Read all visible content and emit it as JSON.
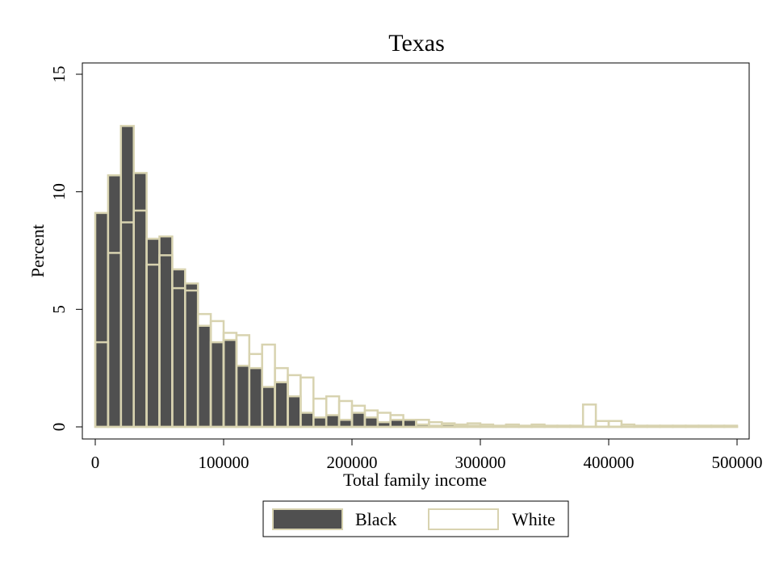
{
  "chart_data": {
    "type": "bar",
    "title": "Texas",
    "xlabel": "Total family income",
    "ylabel": "Percent",
    "xlim": [
      0,
      500000
    ],
    "ylim": [
      0,
      15
    ],
    "xticks": [
      "0",
      "100000",
      "200000",
      "300000",
      "400000",
      "500000"
    ],
    "yticks": [
      "0",
      "5",
      "10",
      "15"
    ],
    "bin_width": 10000,
    "grid": false,
    "legend_position": "bottom",
    "series": [
      {
        "name": "Black",
        "fill": "#505050",
        "stroke": "#d8d3b0",
        "bins": [
          [
            0,
            9.1
          ],
          [
            10000,
            10.7
          ],
          [
            20000,
            12.8
          ],
          [
            30000,
            10.8
          ],
          [
            40000,
            8.0
          ],
          [
            50000,
            8.1
          ],
          [
            60000,
            6.7
          ],
          [
            70000,
            6.1
          ],
          [
            80000,
            4.3
          ],
          [
            90000,
            3.6
          ],
          [
            100000,
            3.7
          ],
          [
            110000,
            2.6
          ],
          [
            120000,
            2.5
          ],
          [
            130000,
            1.7
          ],
          [
            140000,
            1.9
          ],
          [
            150000,
            1.3
          ],
          [
            160000,
            0.6
          ],
          [
            170000,
            0.4
          ],
          [
            180000,
            0.5
          ],
          [
            190000,
            0.3
          ],
          [
            200000,
            0.6
          ],
          [
            210000,
            0.4
          ],
          [
            220000,
            0.2
          ],
          [
            230000,
            0.3
          ],
          [
            240000,
            0.3
          ],
          [
            250000,
            0.1
          ],
          [
            260000,
            0.05
          ],
          [
            270000,
            0.1
          ],
          [
            280000,
            0.05
          ],
          [
            290000,
            0.05
          ],
          [
            300000,
            0.02
          ],
          [
            310000,
            0.02
          ],
          [
            320000,
            0.02
          ],
          [
            330000,
            0.02
          ],
          [
            340000,
            0.02
          ],
          [
            350000,
            0.02
          ],
          [
            360000,
            0.01
          ],
          [
            370000,
            0.01
          ],
          [
            380000,
            0.01
          ],
          [
            390000,
            0.01
          ],
          [
            400000,
            0.01
          ],
          [
            410000,
            0.01
          ],
          [
            420000,
            0.01
          ],
          [
            430000,
            0.01
          ],
          [
            440000,
            0.01
          ],
          [
            450000,
            0.01
          ],
          [
            460000,
            0.01
          ],
          [
            470000,
            0.01
          ],
          [
            480000,
            0.01
          ],
          [
            490000,
            0.01
          ]
        ]
      },
      {
        "name": "White",
        "fill": "none",
        "stroke": "#d8d3b0",
        "bins": [
          [
            0,
            3.6
          ],
          [
            10000,
            7.4
          ],
          [
            20000,
            8.7
          ],
          [
            30000,
            9.2
          ],
          [
            40000,
            6.9
          ],
          [
            50000,
            7.3
          ],
          [
            60000,
            5.9
          ],
          [
            70000,
            5.8
          ],
          [
            80000,
            4.8
          ],
          [
            90000,
            4.5
          ],
          [
            100000,
            4.0
          ],
          [
            110000,
            3.9
          ],
          [
            120000,
            3.1
          ],
          [
            130000,
            3.5
          ],
          [
            140000,
            2.5
          ],
          [
            150000,
            2.2
          ],
          [
            160000,
            2.1
          ],
          [
            170000,
            1.2
          ],
          [
            180000,
            1.3
          ],
          [
            190000,
            1.1
          ],
          [
            200000,
            0.9
          ],
          [
            210000,
            0.7
          ],
          [
            220000,
            0.6
          ],
          [
            230000,
            0.5
          ],
          [
            240000,
            0.3
          ],
          [
            250000,
            0.3
          ],
          [
            260000,
            0.2
          ],
          [
            270000,
            0.15
          ],
          [
            280000,
            0.1
          ],
          [
            290000,
            0.15
          ],
          [
            300000,
            0.1
          ],
          [
            310000,
            0.05
          ],
          [
            320000,
            0.1
          ],
          [
            330000,
            0.05
          ],
          [
            340000,
            0.1
          ],
          [
            350000,
            0.05
          ],
          [
            360000,
            0.05
          ],
          [
            370000,
            0.05
          ],
          [
            380000,
            0.95
          ],
          [
            390000,
            0.25
          ],
          [
            400000,
            0.25
          ],
          [
            410000,
            0.1
          ],
          [
            420000,
            0.05
          ],
          [
            430000,
            0.05
          ],
          [
            440000,
            0.05
          ],
          [
            450000,
            0.05
          ],
          [
            460000,
            0.05
          ],
          [
            470000,
            0.05
          ],
          [
            480000,
            0.05
          ],
          [
            490000,
            0.05
          ]
        ]
      }
    ]
  }
}
